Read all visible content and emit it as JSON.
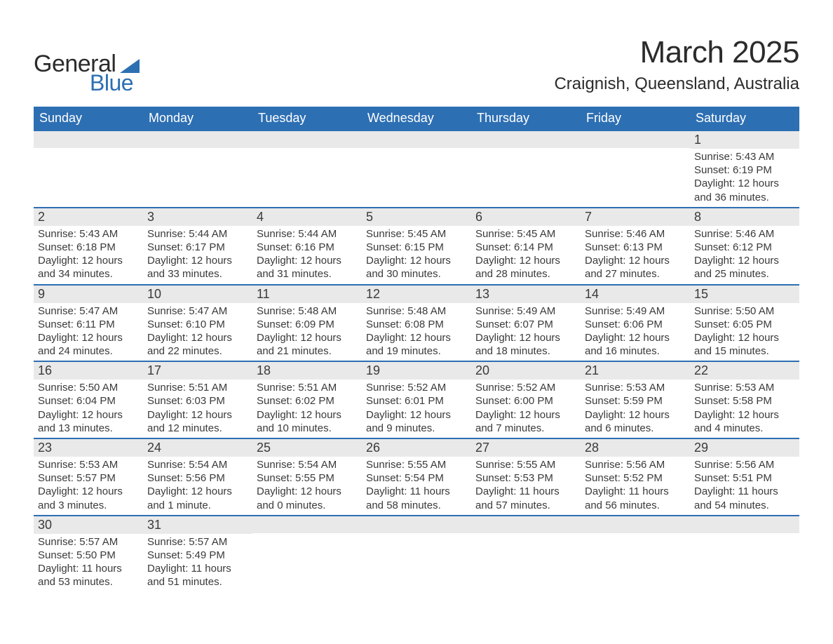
{
  "logo": {
    "text_general": "General",
    "text_blue": "Blue",
    "triangle_color": "#2d6fb3"
  },
  "header": {
    "month_title": "March 2025",
    "location": "Craignish, Queensland, Australia"
  },
  "calendar": {
    "type": "table",
    "header_bg": "#2d6fb3",
    "header_fg": "#ffffff",
    "row_separator_color": "#2d6fb3",
    "day_number_bg": "#e9e9e9",
    "content_fontsize": 15,
    "daynum_fontsize": 18,
    "columns": [
      "Sunday",
      "Monday",
      "Tuesday",
      "Wednesday",
      "Thursday",
      "Friday",
      "Saturday"
    ],
    "weeks": [
      [
        null,
        null,
        null,
        null,
        null,
        null,
        {
          "n": "1",
          "sunrise": "Sunrise: 5:43 AM",
          "sunset": "Sunset: 6:19 PM",
          "daylight": "Daylight: 12 hours and 36 minutes."
        }
      ],
      [
        {
          "n": "2",
          "sunrise": "Sunrise: 5:43 AM",
          "sunset": "Sunset: 6:18 PM",
          "daylight": "Daylight: 12 hours and 34 minutes."
        },
        {
          "n": "3",
          "sunrise": "Sunrise: 5:44 AM",
          "sunset": "Sunset: 6:17 PM",
          "daylight": "Daylight: 12 hours and 33 minutes."
        },
        {
          "n": "4",
          "sunrise": "Sunrise: 5:44 AM",
          "sunset": "Sunset: 6:16 PM",
          "daylight": "Daylight: 12 hours and 31 minutes."
        },
        {
          "n": "5",
          "sunrise": "Sunrise: 5:45 AM",
          "sunset": "Sunset: 6:15 PM",
          "daylight": "Daylight: 12 hours and 30 minutes."
        },
        {
          "n": "6",
          "sunrise": "Sunrise: 5:45 AM",
          "sunset": "Sunset: 6:14 PM",
          "daylight": "Daylight: 12 hours and 28 minutes."
        },
        {
          "n": "7",
          "sunrise": "Sunrise: 5:46 AM",
          "sunset": "Sunset: 6:13 PM",
          "daylight": "Daylight: 12 hours and 27 minutes."
        },
        {
          "n": "8",
          "sunrise": "Sunrise: 5:46 AM",
          "sunset": "Sunset: 6:12 PM",
          "daylight": "Daylight: 12 hours and 25 minutes."
        }
      ],
      [
        {
          "n": "9",
          "sunrise": "Sunrise: 5:47 AM",
          "sunset": "Sunset: 6:11 PM",
          "daylight": "Daylight: 12 hours and 24 minutes."
        },
        {
          "n": "10",
          "sunrise": "Sunrise: 5:47 AM",
          "sunset": "Sunset: 6:10 PM",
          "daylight": "Daylight: 12 hours and 22 minutes."
        },
        {
          "n": "11",
          "sunrise": "Sunrise: 5:48 AM",
          "sunset": "Sunset: 6:09 PM",
          "daylight": "Daylight: 12 hours and 21 minutes."
        },
        {
          "n": "12",
          "sunrise": "Sunrise: 5:48 AM",
          "sunset": "Sunset: 6:08 PM",
          "daylight": "Daylight: 12 hours and 19 minutes."
        },
        {
          "n": "13",
          "sunrise": "Sunrise: 5:49 AM",
          "sunset": "Sunset: 6:07 PM",
          "daylight": "Daylight: 12 hours and 18 minutes."
        },
        {
          "n": "14",
          "sunrise": "Sunrise: 5:49 AM",
          "sunset": "Sunset: 6:06 PM",
          "daylight": "Daylight: 12 hours and 16 minutes."
        },
        {
          "n": "15",
          "sunrise": "Sunrise: 5:50 AM",
          "sunset": "Sunset: 6:05 PM",
          "daylight": "Daylight: 12 hours and 15 minutes."
        }
      ],
      [
        {
          "n": "16",
          "sunrise": "Sunrise: 5:50 AM",
          "sunset": "Sunset: 6:04 PM",
          "daylight": "Daylight: 12 hours and 13 minutes."
        },
        {
          "n": "17",
          "sunrise": "Sunrise: 5:51 AM",
          "sunset": "Sunset: 6:03 PM",
          "daylight": "Daylight: 12 hours and 12 minutes."
        },
        {
          "n": "18",
          "sunrise": "Sunrise: 5:51 AM",
          "sunset": "Sunset: 6:02 PM",
          "daylight": "Daylight: 12 hours and 10 minutes."
        },
        {
          "n": "19",
          "sunrise": "Sunrise: 5:52 AM",
          "sunset": "Sunset: 6:01 PM",
          "daylight": "Daylight: 12 hours and 9 minutes."
        },
        {
          "n": "20",
          "sunrise": "Sunrise: 5:52 AM",
          "sunset": "Sunset: 6:00 PM",
          "daylight": "Daylight: 12 hours and 7 minutes."
        },
        {
          "n": "21",
          "sunrise": "Sunrise: 5:53 AM",
          "sunset": "Sunset: 5:59 PM",
          "daylight": "Daylight: 12 hours and 6 minutes."
        },
        {
          "n": "22",
          "sunrise": "Sunrise: 5:53 AM",
          "sunset": "Sunset: 5:58 PM",
          "daylight": "Daylight: 12 hours and 4 minutes."
        }
      ],
      [
        {
          "n": "23",
          "sunrise": "Sunrise: 5:53 AM",
          "sunset": "Sunset: 5:57 PM",
          "daylight": "Daylight: 12 hours and 3 minutes."
        },
        {
          "n": "24",
          "sunrise": "Sunrise: 5:54 AM",
          "sunset": "Sunset: 5:56 PM",
          "daylight": "Daylight: 12 hours and 1 minute."
        },
        {
          "n": "25",
          "sunrise": "Sunrise: 5:54 AM",
          "sunset": "Sunset: 5:55 PM",
          "daylight": "Daylight: 12 hours and 0 minutes."
        },
        {
          "n": "26",
          "sunrise": "Sunrise: 5:55 AM",
          "sunset": "Sunset: 5:54 PM",
          "daylight": "Daylight: 11 hours and 58 minutes."
        },
        {
          "n": "27",
          "sunrise": "Sunrise: 5:55 AM",
          "sunset": "Sunset: 5:53 PM",
          "daylight": "Daylight: 11 hours and 57 minutes."
        },
        {
          "n": "28",
          "sunrise": "Sunrise: 5:56 AM",
          "sunset": "Sunset: 5:52 PM",
          "daylight": "Daylight: 11 hours and 56 minutes."
        },
        {
          "n": "29",
          "sunrise": "Sunrise: 5:56 AM",
          "sunset": "Sunset: 5:51 PM",
          "daylight": "Daylight: 11 hours and 54 minutes."
        }
      ],
      [
        {
          "n": "30",
          "sunrise": "Sunrise: 5:57 AM",
          "sunset": "Sunset: 5:50 PM",
          "daylight": "Daylight: 11 hours and 53 minutes."
        },
        {
          "n": "31",
          "sunrise": "Sunrise: 5:57 AM",
          "sunset": "Sunset: 5:49 PM",
          "daylight": "Daylight: 11 hours and 51 minutes."
        },
        null,
        null,
        null,
        null,
        null
      ]
    ]
  }
}
